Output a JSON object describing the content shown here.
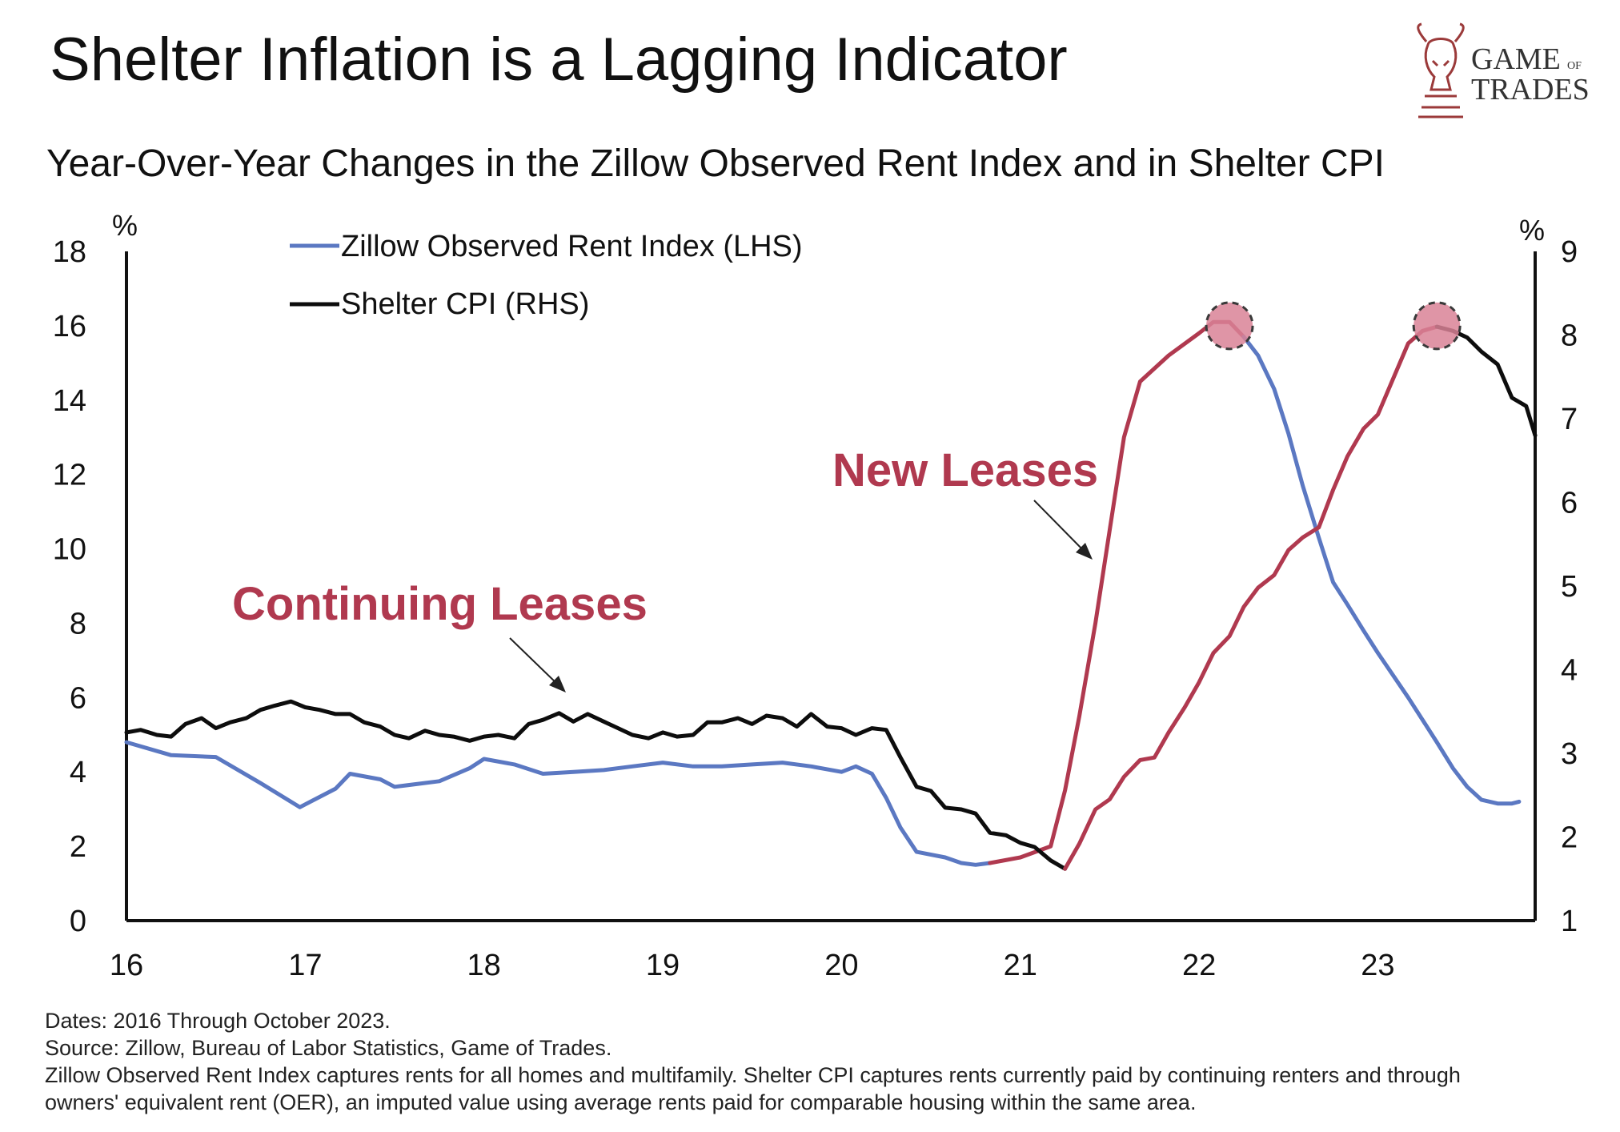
{
  "header": {
    "title": "Shelter Inflation is a Lagging Indicator",
    "subtitle": "Year-Over-Year Changes in the Zillow Observed Rent Index and in Shelter CPI"
  },
  "logo": {
    "line1": "GAME",
    "of": "OF",
    "line2": "TRADES",
    "icon": "bull-chess-knight-icon",
    "color": "#9b3a3a"
  },
  "colors": {
    "zori": "#5b78c2",
    "cpi": "#0d0d0d",
    "highlight": "#b0394f",
    "marker_fill": "#d98296",
    "axis": "#111111"
  },
  "footnotes": {
    "dates": "Dates: 2016 Through October 2023.",
    "source": "Source: Zillow, Bureau of Labor Statistics, Game of Trades.",
    "note_line1": "Zillow Observed Rent Index captures rents for all homes and multifamily. Shelter CPI captures rents currently paid by continuing renters and through",
    "note_line2": "owners' equivalent rent (OER), an imputed value using average rents paid for comparable housing within the same area."
  },
  "chart_data": {
    "type": "line",
    "title": "Shelter Inflation is a Lagging Indicator",
    "subtitle": "Year-Over-Year Changes in the Zillow Observed Rent Index and in Shelter CPI",
    "x_ticks": [
      16,
      17,
      18,
      19,
      20,
      21,
      22,
      23
    ],
    "x_tick_labels": [
      "16",
      "17",
      "18",
      "19",
      "20",
      "21",
      "22",
      "23"
    ],
    "xlim": [
      16,
      23.88
    ],
    "y_left": {
      "label": "%",
      "ylim": [
        0,
        18
      ],
      "ticks": [
        0,
        2,
        4,
        6,
        8,
        10,
        12,
        14,
        16,
        18
      ]
    },
    "y_right": {
      "label": "%",
      "ylim": [
        1,
        9
      ],
      "ticks": [
        1,
        2,
        3,
        4,
        5,
        6,
        7,
        8,
        9
      ]
    },
    "legend": {
      "position": "top-left",
      "entries": [
        "Zillow Observed Rent Index (LHS)",
        "Shelter CPI (RHS)"
      ]
    },
    "series": [
      {
        "name": "Zillow Observed Rent Index (LHS)",
        "axis": "left",
        "color": "#5b78c2",
        "points": [
          [
            16.0,
            4.8
          ],
          [
            16.25,
            4.45
          ],
          [
            16.5,
            4.4
          ],
          [
            16.75,
            3.7
          ],
          [
            16.97,
            3.05
          ],
          [
            17.17,
            3.55
          ],
          [
            17.25,
            3.95
          ],
          [
            17.42,
            3.8
          ],
          [
            17.5,
            3.6
          ],
          [
            17.75,
            3.75
          ],
          [
            17.92,
            4.1
          ],
          [
            18.0,
            4.35
          ],
          [
            18.17,
            4.2
          ],
          [
            18.33,
            3.95
          ],
          [
            18.5,
            4.0
          ],
          [
            18.67,
            4.05
          ],
          [
            18.83,
            4.15
          ],
          [
            19.0,
            4.25
          ],
          [
            19.17,
            4.15
          ],
          [
            19.33,
            4.15
          ],
          [
            19.5,
            4.2
          ],
          [
            19.67,
            4.25
          ],
          [
            19.83,
            4.15
          ],
          [
            20.0,
            4.0
          ],
          [
            20.08,
            4.15
          ],
          [
            20.17,
            3.95
          ],
          [
            20.25,
            3.3
          ],
          [
            20.33,
            2.5
          ],
          [
            20.42,
            1.85
          ],
          [
            20.58,
            1.7
          ],
          [
            20.67,
            1.55
          ],
          [
            20.75,
            1.5
          ],
          [
            20.83,
            1.55
          ]
        ]
      },
      {
        "name": "Zillow Observed Rent Index (LHS) - New Leases",
        "axis": "left",
        "color": "#b0394f",
        "points": [
          [
            20.83,
            1.55
          ],
          [
            21.0,
            1.7
          ],
          [
            21.17,
            2.0
          ],
          [
            21.25,
            3.5
          ],
          [
            21.33,
            5.5
          ],
          [
            21.42,
            8.0
          ],
          [
            21.5,
            10.5
          ],
          [
            21.58,
            13.0
          ],
          [
            21.67,
            14.5
          ],
          [
            21.83,
            15.2
          ],
          [
            22.0,
            15.8
          ],
          [
            22.08,
            16.1
          ],
          [
            22.17,
            16.1
          ],
          [
            22.25,
            15.7
          ]
        ]
      },
      {
        "name": "Zillow Observed Rent Index (LHS) - Decline",
        "axis": "left",
        "color": "#5b78c2",
        "points": [
          [
            22.25,
            15.7
          ],
          [
            22.33,
            15.2
          ],
          [
            22.42,
            14.3
          ],
          [
            22.5,
            13.1
          ],
          [
            22.58,
            11.7
          ],
          [
            22.67,
            10.3
          ],
          [
            22.75,
            9.1
          ],
          [
            22.83,
            8.5
          ],
          [
            22.92,
            7.8
          ],
          [
            23.0,
            7.2
          ],
          [
            23.17,
            6.0
          ],
          [
            23.33,
            4.8
          ],
          [
            23.42,
            4.1
          ],
          [
            23.5,
            3.6
          ],
          [
            23.58,
            3.25
          ],
          [
            23.67,
            3.15
          ],
          [
            23.75,
            3.15
          ],
          [
            23.79,
            3.2
          ]
        ]
      },
      {
        "name": "Shelter CPI (RHS)",
        "axis": "right",
        "color": "#0d0d0d",
        "points": [
          [
            16.0,
            3.25
          ],
          [
            16.08,
            3.28
          ],
          [
            16.17,
            3.22
          ],
          [
            16.25,
            3.2
          ],
          [
            16.33,
            3.35
          ],
          [
            16.42,
            3.42
          ],
          [
            16.5,
            3.3
          ],
          [
            16.58,
            3.37
          ],
          [
            16.67,
            3.42
          ],
          [
            16.75,
            3.52
          ],
          [
            16.83,
            3.57
          ],
          [
            16.92,
            3.62
          ],
          [
            17.0,
            3.55
          ],
          [
            17.08,
            3.52
          ],
          [
            17.17,
            3.47
          ],
          [
            17.25,
            3.47
          ],
          [
            17.33,
            3.37
          ],
          [
            17.42,
            3.32
          ],
          [
            17.5,
            3.22
          ],
          [
            17.58,
            3.18
          ],
          [
            17.67,
            3.27
          ],
          [
            17.75,
            3.22
          ],
          [
            17.83,
            3.2
          ],
          [
            17.92,
            3.15
          ],
          [
            18.0,
            3.2
          ],
          [
            18.08,
            3.22
          ],
          [
            18.17,
            3.18
          ],
          [
            18.25,
            3.35
          ],
          [
            18.33,
            3.4
          ],
          [
            18.42,
            3.48
          ],
          [
            18.5,
            3.38
          ],
          [
            18.58,
            3.47
          ],
          [
            18.67,
            3.38
          ],
          [
            18.75,
            3.3
          ],
          [
            18.83,
            3.22
          ],
          [
            18.92,
            3.18
          ],
          [
            19.0,
            3.25
          ],
          [
            19.08,
            3.2
          ],
          [
            19.17,
            3.22
          ],
          [
            19.25,
            3.37
          ],
          [
            19.33,
            3.37
          ],
          [
            19.42,
            3.42
          ],
          [
            19.5,
            3.35
          ],
          [
            19.58,
            3.45
          ],
          [
            19.67,
            3.42
          ],
          [
            19.75,
            3.32
          ],
          [
            19.83,
            3.47
          ],
          [
            19.92,
            3.32
          ],
          [
            20.0,
            3.3
          ],
          [
            20.08,
            3.22
          ],
          [
            20.17,
            3.3
          ],
          [
            20.25,
            3.28
          ],
          [
            20.33,
            2.95
          ],
          [
            20.42,
            2.6
          ],
          [
            20.5,
            2.55
          ],
          [
            20.58,
            2.35
          ],
          [
            20.67,
            2.33
          ],
          [
            20.75,
            2.28
          ],
          [
            20.83,
            2.05
          ],
          [
            20.92,
            2.02
          ],
          [
            21.0,
            1.93
          ],
          [
            21.08,
            1.88
          ],
          [
            21.17,
            1.72
          ],
          [
            21.25,
            1.62
          ]
        ]
      },
      {
        "name": "Shelter CPI (RHS) - Continuing Leases",
        "axis": "right",
        "color": "#b0394f",
        "points": [
          [
            21.25,
            1.62
          ],
          [
            21.33,
            1.92
          ],
          [
            21.42,
            2.33
          ],
          [
            21.5,
            2.45
          ],
          [
            21.58,
            2.72
          ],
          [
            21.67,
            2.92
          ],
          [
            21.75,
            2.95
          ],
          [
            21.83,
            3.25
          ],
          [
            21.92,
            3.55
          ],
          [
            22.0,
            3.85
          ],
          [
            22.08,
            4.2
          ],
          [
            22.17,
            4.4
          ],
          [
            22.25,
            4.75
          ],
          [
            22.33,
            4.98
          ],
          [
            22.42,
            5.13
          ],
          [
            22.5,
            5.43
          ],
          [
            22.58,
            5.58
          ],
          [
            22.67,
            5.7
          ],
          [
            22.75,
            6.15
          ],
          [
            22.83,
            6.55
          ],
          [
            22.92,
            6.88
          ],
          [
            23.0,
            7.05
          ],
          [
            23.08,
            7.45
          ],
          [
            23.17,
            7.9
          ],
          [
            23.25,
            8.05
          ],
          [
            23.33,
            8.1
          ]
        ]
      },
      {
        "name": "Shelter CPI (RHS) - Decline",
        "axis": "right",
        "color": "#0d0d0d",
        "points": [
          [
            23.33,
            8.1
          ],
          [
            23.42,
            8.05
          ],
          [
            23.5,
            7.97
          ],
          [
            23.58,
            7.8
          ],
          [
            23.67,
            7.65
          ],
          [
            23.75,
            7.25
          ],
          [
            23.83,
            7.15
          ],
          [
            23.88,
            6.8
          ]
        ]
      }
    ],
    "peak_markers": [
      {
        "x": 22.17,
        "y": 16.0,
        "axis": "left"
      },
      {
        "x": 23.33,
        "y": 16.0,
        "axis": "left"
      }
    ],
    "annotations": [
      {
        "text": "New Leases",
        "color": "#b0394f"
      },
      {
        "text": "Continuing Leases",
        "color": "#b0394f"
      }
    ]
  }
}
